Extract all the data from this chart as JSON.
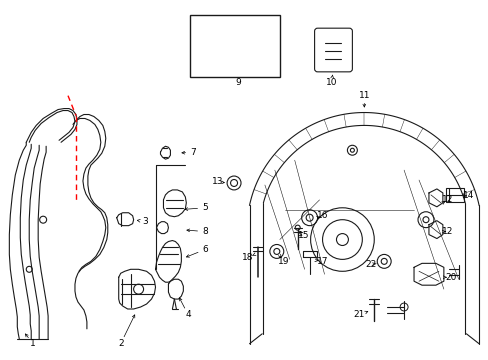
{
  "background_color": "#ffffff",
  "line_color": "#1a1a1a",
  "red_color": "#ff0000",
  "fig_width": 4.89,
  "fig_height": 3.6,
  "dpi": 100
}
